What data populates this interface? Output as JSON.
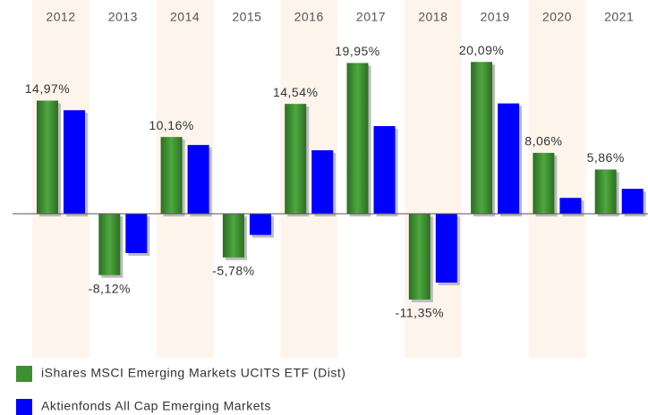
{
  "chart_data": {
    "type": "bar",
    "categories": [
      "2012",
      "2013",
      "2014",
      "2015",
      "2016",
      "2017",
      "2018",
      "2019",
      "2020",
      "2021"
    ],
    "series": [
      {
        "name": "iShares MSCI Emerging Markets UCITS ETF (Dist)",
        "color": "#3d8f30",
        "values": [
          14.97,
          -8.12,
          10.16,
          -5.78,
          14.54,
          19.95,
          -11.35,
          20.09,
          8.06,
          5.86
        ],
        "value_labels": [
          "14,97%",
          "-8,12%",
          "10,16%",
          "-5,78%",
          "14,54%",
          "19,95%",
          "-11,35%",
          "20,09%",
          "8,06%",
          "5,86%"
        ]
      },
      {
        "name": "Aktienfonds All Cap  Emerging Markets",
        "color": "#0000ff",
        "values": [
          13.7,
          -5.2,
          9.1,
          -2.8,
          8.4,
          11.6,
          -9.1,
          14.6,
          2.1,
          3.3
        ]
      }
    ]
  }
}
